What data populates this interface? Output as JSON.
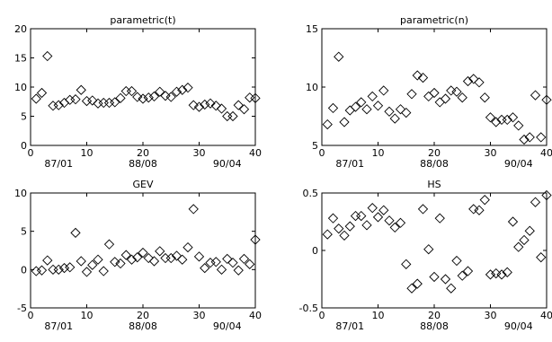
{
  "chart_data": [
    {
      "type": "scatter",
      "title": "parametric(t)",
      "marker": "diamond",
      "xlim": [
        0,
        40
      ],
      "ylim": [
        0,
        20
      ],
      "xticks": [
        "0",
        "10",
        "20",
        "30",
        "40"
      ],
      "yticks": [
        "0",
        "5",
        "10",
        "15",
        "20"
      ],
      "date_labels": [
        "87/01",
        "88/08",
        "90/04"
      ],
      "series": [
        {
          "x": [
            1,
            2,
            3,
            4,
            5,
            6,
            7,
            8,
            9,
            10,
            11,
            12,
            13,
            14,
            15,
            16,
            17,
            18,
            19,
            20,
            21,
            22,
            23,
            24,
            25,
            26,
            27,
            28,
            29,
            30,
            31,
            32,
            33,
            34,
            35,
            36,
            37,
            38,
            39,
            40
          ],
          "y": [
            8.0,
            9.0,
            15.3,
            6.8,
            6.9,
            7.3,
            7.8,
            7.9,
            9.5,
            7.6,
            7.7,
            7.2,
            7.3,
            7.3,
            7.4,
            8.1,
            9.3,
            9.3,
            8.3,
            8.0,
            8.2,
            8.4,
            9.2,
            8.5,
            8.3,
            9.2,
            9.5,
            9.9,
            6.9,
            6.6,
            7.0,
            7.2,
            6.8,
            6.3,
            5.0,
            5.0,
            6.9,
            6.2,
            8.2,
            8.1
          ]
        }
      ]
    },
    {
      "type": "scatter",
      "title": "parametric(n)",
      "marker": "diamond",
      "xlim": [
        0,
        40
      ],
      "ylim": [
        5,
        15
      ],
      "xticks": [
        "0",
        "10",
        "20",
        "30",
        "40"
      ],
      "yticks": [
        "5",
        "10",
        "15"
      ],
      "date_labels": [
        "87/01",
        "88/08",
        "90/04"
      ],
      "series": [
        {
          "x": [
            1,
            2,
            3,
            4,
            5,
            6,
            7,
            8,
            9,
            10,
            11,
            12,
            13,
            14,
            15,
            16,
            17,
            18,
            19,
            20,
            21,
            22,
            23,
            24,
            25,
            26,
            27,
            28,
            29,
            30,
            31,
            32,
            33,
            34,
            35,
            36,
            37,
            38,
            39,
            40
          ],
          "y": [
            6.8,
            8.2,
            12.6,
            7.0,
            8.0,
            8.3,
            8.7,
            8.1,
            9.2,
            8.4,
            9.7,
            7.9,
            7.3,
            8.1,
            7.8,
            9.4,
            11.0,
            10.8,
            9.2,
            9.5,
            8.7,
            9.0,
            9.7,
            9.6,
            9.1,
            10.5,
            10.7,
            10.4,
            9.1,
            7.4,
            7.0,
            7.2,
            7.2,
            7.4,
            6.7,
            5.5,
            5.7,
            9.3,
            5.7,
            8.9
          ]
        }
      ]
    },
    {
      "type": "scatter",
      "title": "GEV",
      "marker": "diamond",
      "xlim": [
        0,
        40
      ],
      "ylim": [
        -5,
        10
      ],
      "xticks": [
        "0",
        "10",
        "20",
        "30",
        "40"
      ],
      "yticks": [
        "-5",
        "0",
        "5",
        "10"
      ],
      "date_labels": [
        "87/01",
        "88/08",
        "90/04"
      ],
      "series": [
        {
          "x": [
            1,
            2,
            3,
            4,
            5,
            6,
            7,
            8,
            9,
            10,
            11,
            12,
            13,
            14,
            15,
            16,
            17,
            18,
            19,
            20,
            21,
            22,
            23,
            24,
            25,
            26,
            27,
            28,
            29,
            30,
            31,
            32,
            33,
            34,
            35,
            36,
            37,
            38,
            39,
            40
          ],
          "y": [
            -0.2,
            -0.1,
            1.2,
            0.0,
            0.0,
            0.2,
            0.3,
            4.8,
            1.1,
            -0.3,
            0.6,
            1.3,
            -0.2,
            3.3,
            1.0,
            0.8,
            1.9,
            1.3,
            1.6,
            2.2,
            1.5,
            1.1,
            2.4,
            1.5,
            1.5,
            1.8,
            1.3,
            2.9,
            7.9,
            1.7,
            0.2,
            0.9,
            1.0,
            0.0,
            1.4,
            0.9,
            -0.1,
            1.4,
            0.7,
            3.9
          ]
        }
      ]
    },
    {
      "type": "scatter",
      "title": "HS",
      "marker": "diamond",
      "xlim": [
        0,
        40
      ],
      "ylim": [
        -0.5,
        0.5
      ],
      "xticks": [
        "0",
        "10",
        "20",
        "30",
        "40"
      ],
      "yticks": [
        "-0.5",
        "0",
        "0.5"
      ],
      "date_labels": [
        "87/01",
        "88/08",
        "90/04"
      ],
      "series": [
        {
          "x": [
            1,
            2,
            3,
            4,
            5,
            6,
            7,
            8,
            9,
            10,
            11,
            12,
            13,
            14,
            15,
            16,
            17,
            18,
            19,
            20,
            21,
            22,
            23,
            24,
            25,
            26,
            27,
            28,
            29,
            30,
            31,
            32,
            33,
            34,
            35,
            36,
            37,
            38,
            39,
            40
          ],
          "y": [
            0.14,
            0.28,
            0.19,
            0.13,
            0.21,
            0.3,
            0.3,
            0.22,
            0.37,
            0.29,
            0.35,
            0.26,
            0.2,
            0.24,
            -0.12,
            -0.33,
            -0.29,
            0.36,
            0.01,
            -0.23,
            0.28,
            -0.25,
            -0.33,
            -0.09,
            -0.22,
            -0.18,
            0.36,
            0.35,
            0.44,
            -0.21,
            -0.2,
            -0.21,
            -0.19,
            0.25,
            0.03,
            0.09,
            0.17,
            0.42,
            -0.06,
            0.48
          ]
        }
      ]
    }
  ]
}
